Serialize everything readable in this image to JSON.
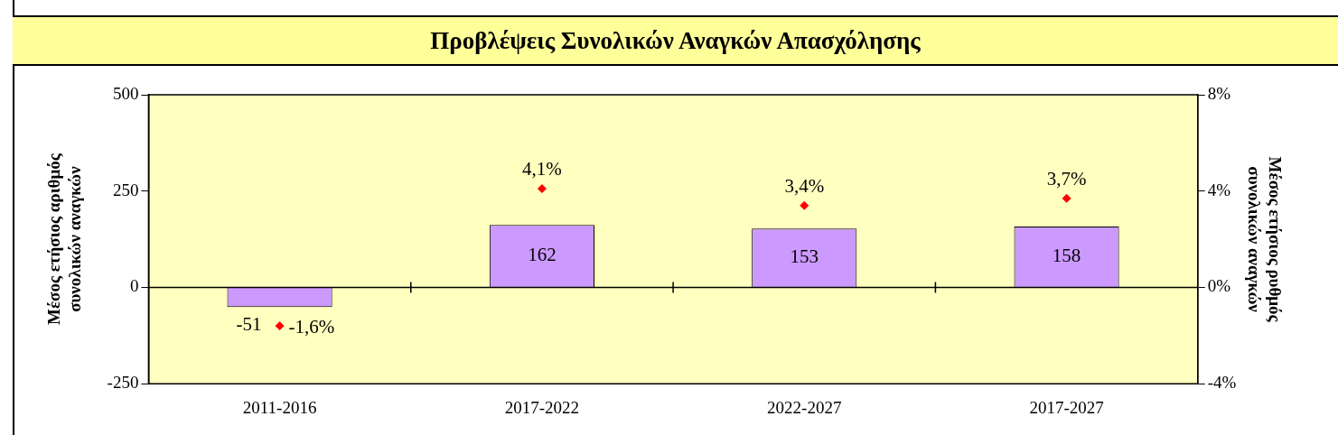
{
  "chart_data": {
    "type": "bar",
    "title": "Προβλέψεις Συνολικών Αναγκών Απασχόλησης",
    "ylabel": "Μέσος ετήσιος αριθμός\nσυνολικών αναγκών",
    "y2label": "Μέσος ετήσιος ρυθμός\nσυνολικών αναγκών",
    "categories": [
      "2011-2016",
      "2017-2022",
      "2022-2027",
      "2017-2027"
    ],
    "series": [
      {
        "color": "#cc99ff",
        "values": [
          -51,
          162,
          153,
          158
        ],
        "value_labels": [
          "-51",
          "162",
          "153",
          "158"
        ]
      },
      {
        "type": "scatter",
        "axis": "y2",
        "color": "#ff0000",
        "marker": "diamond",
        "values": [
          -1.6,
          4.1,
          3.4,
          3.7
        ],
        "value_labels": [
          "-1,6%",
          "4,1%",
          "3,4%",
          "3,7%"
        ]
      }
    ],
    "ylim": [
      -250,
      500
    ],
    "yticks": [
      -250,
      0,
      250,
      500
    ],
    "y2lim": [
      -4,
      8
    ],
    "y2ticks": [
      {
        "value": -4,
        "label": "-4%"
      },
      {
        "value": 0,
        "label": "0%"
      },
      {
        "value": 4,
        "label": "4%"
      },
      {
        "value": 8,
        "label": "8%"
      }
    ],
    "ref_lines": [
      {
        "axis": "y",
        "value": 0,
        "color": "#000000"
      }
    ],
    "grid": false,
    "legend": false
  }
}
